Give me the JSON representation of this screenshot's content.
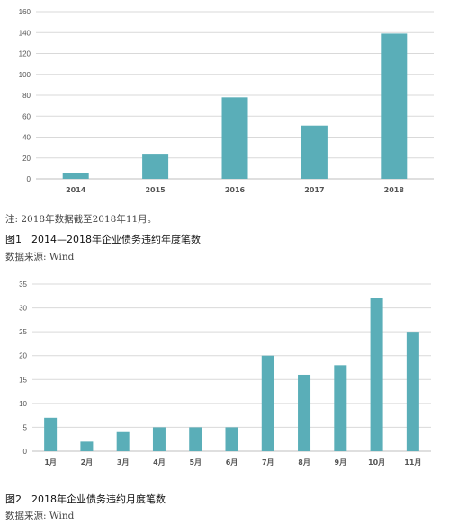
{
  "chart_data": [
    {
      "type": "bar",
      "categories": [
        "2014",
        "2015",
        "2016",
        "2017",
        "2018"
      ],
      "values": [
        6,
        24,
        78,
        51,
        139
      ],
      "ylim": [
        0,
        160
      ],
      "yticks": [
        0,
        20,
        40,
        60,
        80,
        100,
        120,
        140,
        160
      ],
      "grid": true,
      "color": "#5aaeb8"
    },
    {
      "type": "bar",
      "categories": [
        "1月",
        "2月",
        "3月",
        "4月",
        "5月",
        "6月",
        "7月",
        "8月",
        "9月",
        "10月",
        "11月"
      ],
      "values": [
        7,
        2,
        4,
        5,
        5,
        5,
        20,
        16,
        18,
        32,
        25
      ],
      "ylim": [
        0,
        35
      ],
      "yticks": [
        0,
        5,
        10,
        15,
        20,
        25,
        30,
        35
      ],
      "grid": true,
      "color": "#5aaeb8"
    }
  ],
  "text": {
    "note1": "注: 2018年数据截至2018年11月。",
    "caption1": "图1　2014—2018年企业债务违约年度笔数",
    "source1": "数据来源: Wind",
    "caption2": "图2　2018年企业债务违约月度笔数",
    "source2": "数据来源: Wind"
  }
}
